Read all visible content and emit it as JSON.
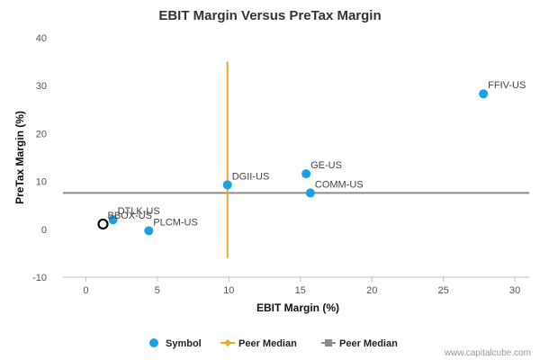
{
  "chart_data": {
    "type": "scatter",
    "title": "EBIT Margin Versus PreTax Margin",
    "xlabel": "EBIT Margin (%)",
    "ylabel": "PreTax Margin (%)",
    "xlim": [
      -1.6,
      31
    ],
    "ylim": [
      -10,
      40
    ],
    "xticks": [
      0,
      5,
      10,
      15,
      20,
      25,
      30
    ],
    "yticks": [
      -10,
      0,
      10,
      20,
      30,
      40
    ],
    "grid": false,
    "legend_position": "bottom",
    "points": [
      {
        "label": "FFIV-US",
        "x": 27.8,
        "y": 28.3
      },
      {
        "label": "GE-US",
        "x": 15.4,
        "y": 11.6
      },
      {
        "label": "DGII-US",
        "x": 9.9,
        "y": 9.3
      },
      {
        "label": "COMM-US",
        "x": 15.7,
        "y": 7.6
      },
      {
        "label": "DTLK-US",
        "x": 1.9,
        "y": 2.0
      },
      {
        "label": "PLCM-US",
        "x": 4.4,
        "y": -0.3
      },
      {
        "label": "BBOX-US",
        "x": 1.2,
        "y": 1.1,
        "highlighted": true
      }
    ],
    "peer_median_x": 9.9,
    "peer_median_x_range": [
      -6,
      35
    ],
    "peer_median_y": 7.6,
    "legend": [
      {
        "label": "Symbol",
        "color": "#1a9fe8",
        "marker": "circle"
      },
      {
        "label": "Peer Median",
        "color": "#f5a623",
        "marker": "diamond-line"
      },
      {
        "label": "Peer Median",
        "color": "#8c8c8c",
        "marker": "square-line"
      }
    ]
  },
  "colors": {
    "symbol": "#1a9fe8",
    "median_vertical": "#f5a623",
    "median_horizontal": "#8c8c8c",
    "highlight_stroke": "#000000"
  },
  "watermark": "www.capitalcube.com"
}
